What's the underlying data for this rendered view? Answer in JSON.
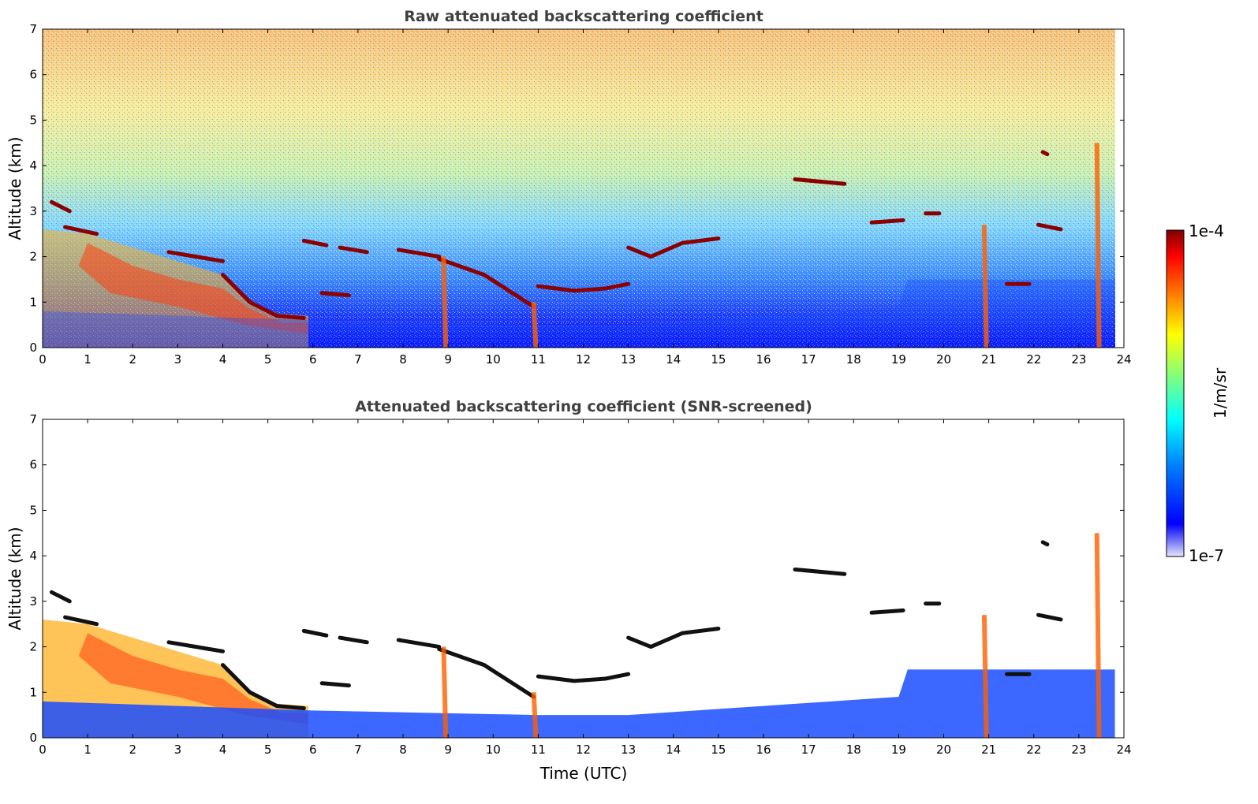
{
  "chart_data": [
    {
      "type": "heatmap",
      "title": "Raw attenuated backscattering coefficient",
      "xlabel": "",
      "ylabel": "Altitude (km)",
      "xlim": [
        0,
        24
      ],
      "ylim": [
        0,
        7
      ],
      "xticks": [
        "0",
        "1",
        "2",
        "3",
        "4",
        "5",
        "6",
        "7",
        "8",
        "9",
        "10",
        "11",
        "12",
        "13",
        "14",
        "15",
        "16",
        "17",
        "18",
        "19",
        "20",
        "21",
        "22",
        "23",
        "24"
      ],
      "yticks": [
        "0",
        "1",
        "2",
        "3",
        "4",
        "5",
        "6",
        "7"
      ],
      "screened": false,
      "cloud_layers": [
        {
          "x": [
            0.2,
            0.6
          ],
          "y": [
            3.2,
            3.0
          ]
        },
        {
          "x": [
            0.5,
            1.2
          ],
          "y": [
            2.65,
            2.5
          ]
        },
        {
          "x": [
            2.8,
            4.0
          ],
          "y": [
            2.1,
            1.9
          ]
        },
        {
          "x": [
            4.0,
            4.6,
            5.2,
            5.8
          ],
          "y": [
            1.6,
            1.0,
            0.7,
            0.65
          ]
        },
        {
          "x": [
            5.8,
            6.3
          ],
          "y": [
            2.35,
            2.25
          ]
        },
        {
          "x": [
            6.2,
            6.8
          ],
          "y": [
            1.2,
            1.15
          ]
        },
        {
          "x": [
            6.6,
            7.2
          ],
          "y": [
            2.2,
            2.1
          ]
        },
        {
          "x": [
            7.9,
            8.8
          ],
          "y": [
            2.15,
            2.0
          ]
        },
        {
          "x": [
            8.8,
            9.8,
            10.9
          ],
          "y": [
            1.95,
            1.6,
            0.9
          ]
        },
        {
          "x": [
            11.0,
            11.8,
            12.5,
            13.0
          ],
          "y": [
            1.35,
            1.25,
            1.3,
            1.4
          ]
        },
        {
          "x": [
            13.0,
            13.5,
            14.2,
            15.0
          ],
          "y": [
            2.2,
            2.0,
            2.3,
            2.4
          ]
        },
        {
          "x": [
            16.7,
            17.8
          ],
          "y": [
            3.7,
            3.6
          ]
        },
        {
          "x": [
            18.4,
            19.1
          ],
          "y": [
            2.75,
            2.8
          ]
        },
        {
          "x": [
            19.6,
            19.9
          ],
          "y": [
            2.95,
            2.95
          ]
        },
        {
          "x": [
            21.4,
            21.9
          ],
          "y": [
            1.4,
            1.4
          ]
        },
        {
          "x": [
            22.1,
            22.6
          ],
          "y": [
            2.7,
            2.6
          ]
        },
        {
          "x": [
            22.2,
            22.3
          ],
          "y": [
            4.3,
            4.25
          ]
        }
      ]
    },
    {
      "type": "heatmap",
      "title": "Attenuated backscattering coefficient (SNR-screened)",
      "xlabel": "Time (UTC)",
      "ylabel": "Altitude (km)",
      "xlim": [
        0,
        24
      ],
      "ylim": [
        0,
        7
      ],
      "xticks": [
        "0",
        "1",
        "2",
        "3",
        "4",
        "5",
        "6",
        "7",
        "8",
        "9",
        "10",
        "11",
        "12",
        "13",
        "14",
        "15",
        "16",
        "17",
        "18",
        "19",
        "20",
        "21",
        "22",
        "23",
        "24"
      ],
      "yticks": [
        "0",
        "1",
        "2",
        "3",
        "4",
        "5",
        "6",
        "7"
      ],
      "screened": true
    }
  ],
  "colorbar": {
    "label": "1/m/sr",
    "max_label": "1e-4",
    "min_label": "1e-7",
    "scale": "log",
    "colors": [
      "#e6e6ff",
      "#6f6ff5",
      "#0000ff",
      "#0080ff",
      "#00ffff",
      "#80ff80",
      "#ffff00",
      "#ff8000",
      "#ff0000",
      "#800000"
    ]
  }
}
